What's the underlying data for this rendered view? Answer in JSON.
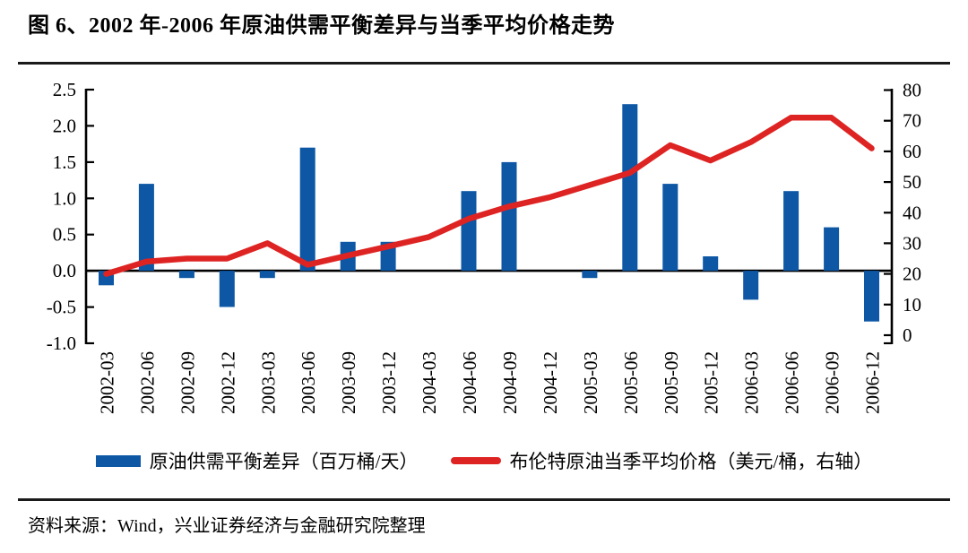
{
  "header": {
    "title": "图 6、2002 年-2006 年原油供需平衡差异与当季平均价格走势"
  },
  "chart_data": {
    "type": "bar",
    "subtype": "bar+line combo, dual axis",
    "categories": [
      "2002-03",
      "2002-06",
      "2002-09",
      "2002-12",
      "2003-03",
      "2003-06",
      "2003-09",
      "2003-12",
      "2004-03",
      "2004-06",
      "2004-09",
      "2004-12",
      "2005-03",
      "2005-06",
      "2005-09",
      "2005-12",
      "2006-03",
      "2006-06",
      "2006-09",
      "2006-12"
    ],
    "series": [
      {
        "name": "原油供需平衡差异（百万桶/天）",
        "type": "bar",
        "axis": "left",
        "color": "#0d57a5",
        "values": [
          -0.2,
          1.2,
          -0.1,
          -0.5,
          -0.1,
          1.7,
          0.4,
          0.4,
          0.0,
          1.1,
          1.5,
          0.0,
          -0.1,
          2.3,
          1.2,
          0.2,
          -0.4,
          1.1,
          0.6,
          -0.7
        ]
      },
      {
        "name": "布伦特原油当季平均价格（美元/桶，右轴）",
        "type": "line",
        "axis": "right",
        "color": "#de2423",
        "values": [
          20,
          24,
          25,
          25,
          30,
          23,
          26,
          29,
          32,
          38,
          42,
          45,
          49,
          53,
          62,
          57,
          63,
          71,
          71,
          61
        ]
      }
    ],
    "left_axis": {
      "min": -1.0,
      "max": 2.5,
      "step": 0.5
    },
    "right_axis": {
      "min": 0,
      "max": 80,
      "step": 10
    },
    "grid": false,
    "legend_position": "bottom"
  },
  "footer": {
    "source": "资料来源：Wind，兴业证券经济与金融研究院整理"
  }
}
